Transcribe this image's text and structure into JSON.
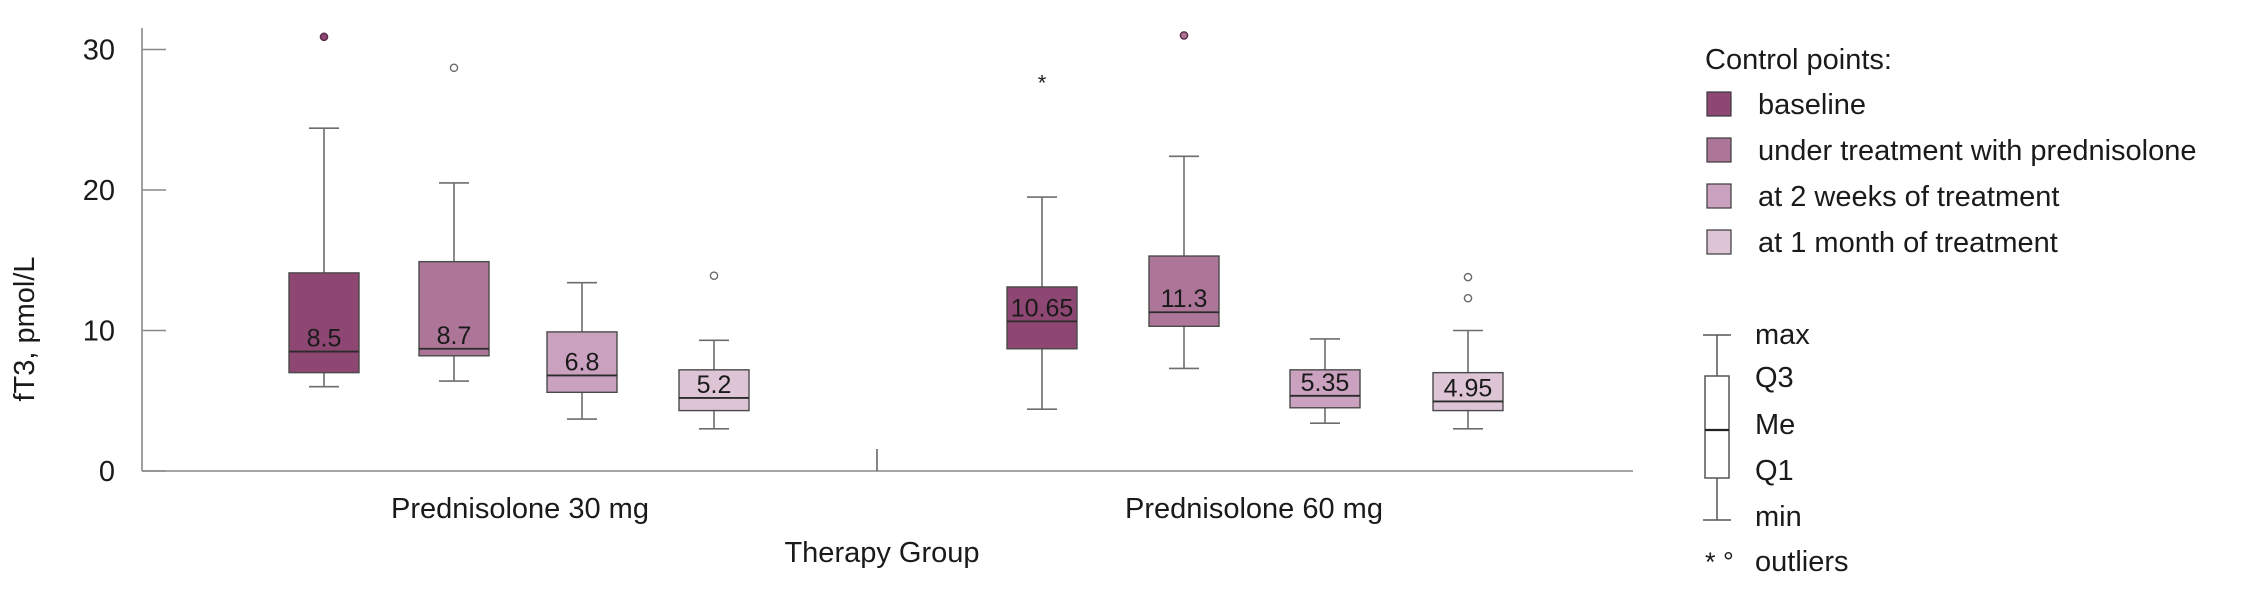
{
  "chart_data": {
    "type": "boxplot",
    "title": "",
    "xlabel": "Therapy Group",
    "ylabel": "fT3, pmol/L",
    "ylim": [
      0,
      31.5
    ],
    "yticks": [
      0,
      10,
      20,
      30
    ],
    "grid": false,
    "groups": [
      "Prednisolone 30 mg",
      "Prednisolone 60 mg"
    ],
    "legend": {
      "title": "Control points:",
      "placement": "right",
      "items": [
        {
          "label": "baseline",
          "color": "#8e4672"
        },
        {
          "label": "under treatment with prednisolone",
          "color": "#ad7699"
        },
        {
          "label": "at 2 weeks of treatment",
          "color": "#caa2bf"
        },
        {
          "label": "at 1 month of treatment",
          "color": "#ddc5d6"
        }
      ]
    },
    "key": {
      "labels": [
        "max",
        "Q3",
        "Me",
        "Q1",
        "min"
      ],
      "outliers_symbols": "* °",
      "outliers_label": "outliers"
    },
    "boxes": [
      {
        "group": 0,
        "series": 0,
        "min": 6.0,
        "q1": 7.0,
        "median": 8.5,
        "q3": 14.1,
        "max": 24.4,
        "label": "8.5",
        "outliers": [
          {
            "value": 30.9,
            "symbol": "extreme"
          }
        ]
      },
      {
        "group": 0,
        "series": 1,
        "min": 6.4,
        "q1": 8.2,
        "median": 8.7,
        "q3": 14.9,
        "max": 20.5,
        "label": "8.7",
        "outliers": [
          {
            "value": 28.7,
            "symbol": "circle"
          }
        ]
      },
      {
        "group": 0,
        "series": 2,
        "min": 3.7,
        "q1": 5.6,
        "median": 6.8,
        "q3": 9.9,
        "max": 13.4,
        "label": "6.8",
        "outliers": []
      },
      {
        "group": 0,
        "series": 3,
        "min": 3.0,
        "q1": 4.3,
        "median": 5.2,
        "q3": 7.2,
        "max": 9.3,
        "label": "5.2",
        "outliers": [
          {
            "value": 13.9,
            "symbol": "circle"
          }
        ]
      },
      {
        "group": 1,
        "series": 0,
        "min": 4.4,
        "q1": 8.7,
        "median": 10.65,
        "q3": 13.1,
        "max": 19.5,
        "label": "10.65",
        "outliers": [
          {
            "value": 27.8,
            "symbol": "star"
          }
        ]
      },
      {
        "group": 1,
        "series": 1,
        "min": 7.3,
        "q1": 10.3,
        "median": 11.3,
        "q3": 15.3,
        "max": 22.4,
        "label": "11.3",
        "outliers": [
          {
            "value": 31.0,
            "symbol": "extreme"
          }
        ]
      },
      {
        "group": 1,
        "series": 2,
        "min": 3.4,
        "q1": 4.5,
        "median": 5.35,
        "q3": 7.2,
        "max": 9.4,
        "label": "5.35",
        "outliers": []
      },
      {
        "group": 1,
        "series": 3,
        "min": 3.0,
        "q1": 4.3,
        "median": 4.95,
        "q3": 7.0,
        "max": 10.0,
        "label": "4.95",
        "outliers": [
          {
            "value": 12.3,
            "symbol": "circle"
          },
          {
            "value": 13.8,
            "symbol": "circle"
          }
        ]
      }
    ]
  }
}
